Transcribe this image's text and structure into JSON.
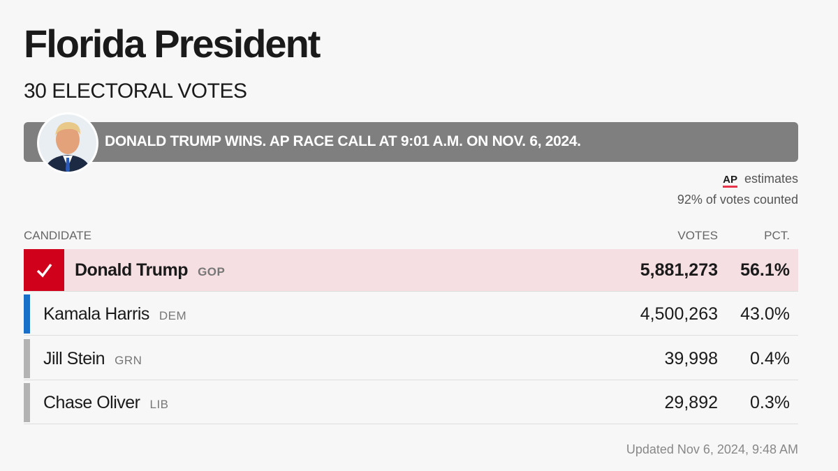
{
  "header": {
    "title": "Florida President",
    "subtitle": "30 ELECTORAL VOTES"
  },
  "banner": {
    "text": "DONALD TRUMP WINS. AP RACE CALL AT 9:01 A.M. ON NOV. 6, 2024."
  },
  "source": {
    "logo": "AP",
    "label": "estimates",
    "counted": "92% of votes counted"
  },
  "table": {
    "columns": [
      "CANDIDATE",
      "VOTES",
      "PCT."
    ],
    "rows": [
      {
        "name": "Donald Trump",
        "party": "GOP",
        "votes": "5,881,273",
        "pct": "56.1%",
        "color": "#d0021b",
        "winner": true
      },
      {
        "name": "Kamala Harris",
        "party": "DEM",
        "votes": "4,500,263",
        "pct": "43.0%",
        "color": "#1a6fc9",
        "winner": false
      },
      {
        "name": "Jill Stein",
        "party": "GRN",
        "votes": "39,998",
        "pct": "0.4%",
        "color": "#b3b3b3",
        "winner": false
      },
      {
        "name": "Chase Oliver",
        "party": "LIB",
        "votes": "29,892",
        "pct": "0.3%",
        "color": "#b3b3b3",
        "winner": false
      }
    ]
  },
  "footer": {
    "updated": "Updated Nov 6, 2024, 9:48 AM"
  }
}
